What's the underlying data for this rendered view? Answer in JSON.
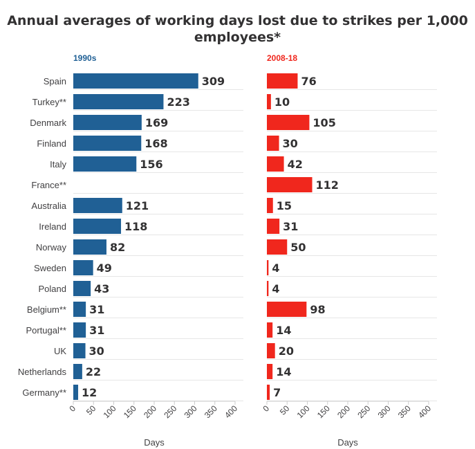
{
  "chart_data": {
    "type": "bar",
    "orientation": "horizontal",
    "title": "Annual averages of working days lost due to strikes per 1,000 employees*",
    "categories": [
      "Spain",
      "Turkey**",
      "Denmark",
      "Finland",
      "Italy",
      "France**",
      "Australia",
      "Ireland",
      "Norway",
      "Sweden",
      "Poland",
      "Belgium**",
      "Portugal**",
      "UK",
      "Netherlands",
      "Germany**"
    ],
    "panels": [
      {
        "name": "1990s",
        "color": "#206095",
        "values": [
          309,
          223,
          169,
          168,
          156,
          null,
          121,
          118,
          82,
          49,
          43,
          31,
          31,
          30,
          22,
          12
        ],
        "xlabel": "Days"
      },
      {
        "name": "2008-18",
        "color": "#f0271d",
        "values": [
          76,
          10,
          105,
          30,
          42,
          112,
          15,
          31,
          50,
          4,
          4,
          98,
          14,
          20,
          14,
          7
        ],
        "xlabel": "Days"
      }
    ],
    "xlim": [
      0,
      400
    ],
    "xticks": [
      "0",
      "50",
      "100",
      "150",
      "200",
      "250",
      "300",
      "350",
      "400"
    ],
    "grid": true
  }
}
